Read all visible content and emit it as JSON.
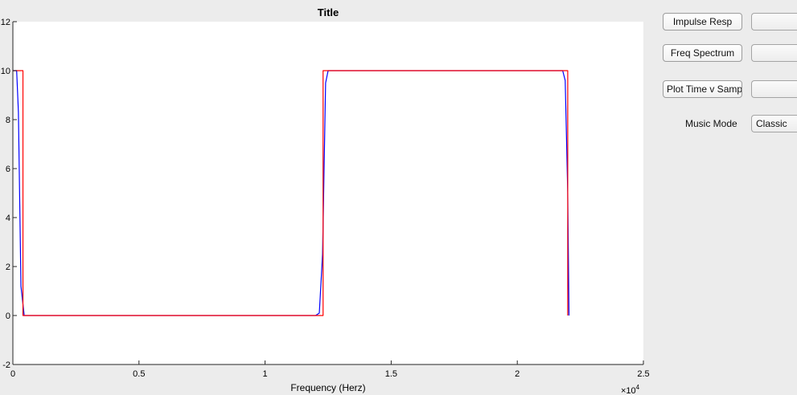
{
  "controls": {
    "impulse_button": "Impulse Resp",
    "freq_button": "Freq Spectrum",
    "plot_time_button": "Plot Time v Samp",
    "music_mode_label": "Music Mode",
    "music_mode_value": "Classic"
  },
  "chart_data": {
    "type": "line",
    "title": "Title",
    "xlabel": "Frequency (Herz)",
    "ylabel": "",
    "x_exponent_label": "×10",
    "x_exponent_power": "4",
    "xlim": [
      0,
      2.5
    ],
    "ylim": [
      -2,
      12
    ],
    "x_ticks": [
      0,
      0.5,
      1,
      1.5,
      2,
      2.5
    ],
    "x_tick_labels": [
      "0",
      "0.5",
      "1",
      "1.5",
      "2",
      "2.5"
    ],
    "y_ticks": [
      -2,
      0,
      2,
      4,
      6,
      8,
      10,
      12
    ],
    "y_tick_labels": [
      "-2",
      "0",
      "2",
      "4",
      "6",
      "8",
      "10",
      "12"
    ],
    "grid": false,
    "series": [
      {
        "color": "#0000ff",
        "x": [
          0,
          0.015,
          0.022,
          0.032,
          0.045,
          0.06,
          1.2,
          1.215,
          1.228,
          1.24,
          1.25,
          1.26,
          2.17,
          2.18,
          2.19,
          2.2,
          2.205
        ],
        "y": [
          10,
          10,
          8.3,
          1.2,
          0,
          0,
          0,
          0.1,
          2.5,
          9.5,
          10,
          10,
          10,
          10,
          9.6,
          5.0,
          0
        ]
      },
      {
        "color": "#ff0000",
        "x": [
          0,
          0.04,
          0.04,
          1.23,
          1.23,
          2.2,
          2.2
        ],
        "y": [
          10,
          10,
          0,
          0,
          10,
          10,
          0
        ]
      }
    ]
  }
}
